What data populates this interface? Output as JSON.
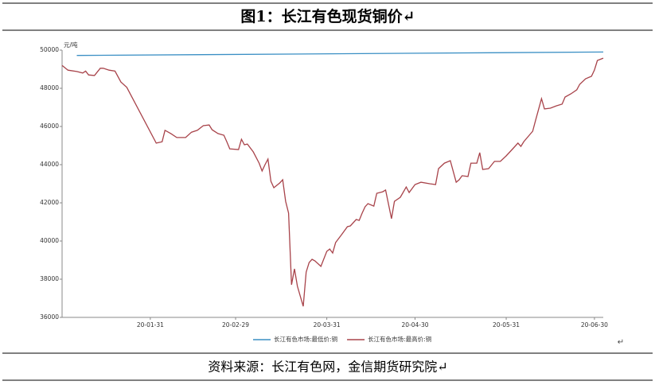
{
  "document": {
    "title": "图1：长江有色现货铜价↵",
    "source": "资料来源：长江有色网，金信期货研究院↵",
    "end_mark": "↵"
  },
  "chart_data": {
    "type": "line",
    "y_label": "元/吨",
    "xlim": [
      "20-01-01",
      "20-07-03"
    ],
    "xticks": [
      "20-01-31",
      "20-02-29",
      "20-03-31",
      "20-04-30",
      "20-05-31",
      "20-06-30"
    ],
    "ylim": [
      36000,
      50000
    ],
    "yticks": [
      36000,
      38000,
      40000,
      42000,
      44000,
      46000,
      48000,
      50000
    ],
    "grid": false,
    "legend": "bottom",
    "series": [
      {
        "name": "长江有色市场:最低价:铜",
        "color": "#3a8fc4",
        "x": [
          "20-01-06",
          "20-07-03"
        ],
        "values": [
          49720,
          49900
        ]
      },
      {
        "name": "长江有色市场:最高价:铜",
        "color": "#a8434a",
        "x": [
          "20-01-01",
          "20-01-03",
          "20-01-06",
          "20-01-08",
          "20-01-09",
          "20-01-10",
          "20-01-12",
          "20-01-14",
          "20-01-15",
          "20-01-17",
          "20-01-19",
          "20-01-21",
          "20-01-23",
          "20-02-02",
          "20-02-04",
          "20-02-05",
          "20-02-07",
          "20-02-09",
          "20-02-12",
          "20-02-14",
          "20-02-16",
          "20-02-18",
          "20-02-20",
          "20-02-21",
          "20-02-23",
          "20-02-25",
          "20-02-26",
          "20-02-27",
          "20-03-01",
          "20-03-02",
          "20-03-03",
          "20-03-04",
          "20-03-06",
          "20-03-08",
          "20-03-09",
          "20-03-10",
          "20-03-11",
          "20-03-12",
          "20-03-13",
          "20-03-15",
          "20-03-16",
          "20-03-17",
          "20-03-18",
          "20-03-19",
          "20-03-20",
          "20-03-21",
          "20-03-23",
          "20-03-24",
          "20-03-25",
          "20-03-26",
          "20-03-27",
          "20-03-29",
          "20-03-31",
          "20-04-01",
          "20-04-02",
          "20-04-03",
          "20-04-05",
          "20-04-07",
          "20-04-08",
          "20-04-10",
          "20-04-11",
          "20-04-12",
          "20-04-13",
          "20-04-14",
          "20-04-16",
          "20-04-17",
          "20-04-19",
          "20-04-20",
          "20-04-22",
          "20-04-23",
          "20-04-25",
          "20-04-27",
          "20-04-28",
          "20-04-30",
          "20-05-02",
          "20-05-05",
          "20-05-07",
          "20-05-08",
          "20-05-10",
          "20-05-12",
          "20-05-14",
          "20-05-15",
          "20-05-16",
          "20-05-18",
          "20-05-19",
          "20-05-21",
          "20-05-22",
          "20-05-23",
          "20-05-25",
          "20-05-27",
          "20-05-29",
          "20-05-31",
          "20-06-02",
          "20-06-04",
          "20-06-05",
          "20-06-06",
          "20-06-09",
          "20-06-10",
          "20-06-12",
          "20-06-13",
          "20-06-15",
          "20-06-17",
          "20-06-19",
          "20-06-20",
          "20-06-22",
          "20-06-24",
          "20-06-25",
          "20-06-27",
          "20-06-29",
          "20-06-30",
          "20-07-01",
          "20-07-03"
        ],
        "values": [
          49200,
          48950,
          48880,
          48800,
          48900,
          48700,
          48670,
          49050,
          49050,
          48950,
          48900,
          48330,
          48050,
          45130,
          45200,
          45800,
          45630,
          45420,
          45420,
          45700,
          45800,
          46040,
          46080,
          45830,
          45630,
          45540,
          45200,
          44830,
          44790,
          45330,
          45040,
          45080,
          44670,
          44080,
          43670,
          44000,
          44290,
          43130,
          42790,
          43040,
          43210,
          42080,
          41460,
          37710,
          38540,
          37630,
          36580,
          38370,
          38870,
          39040,
          38960,
          38670,
          39460,
          39580,
          39370,
          39920,
          40330,
          40750,
          40790,
          41130,
          41080,
          41460,
          41790,
          41960,
          41830,
          42500,
          42580,
          42670,
          41170,
          42080,
          42290,
          42830,
          42540,
          42960,
          43080,
          43000,
          42960,
          43790,
          44080,
          44210,
          43080,
          43210,
          43420,
          43380,
          44080,
          44080,
          44630,
          43750,
          43790,
          44170,
          44170,
          44460,
          44790,
          45130,
          44960,
          45210,
          45750,
          46330,
          47460,
          46920,
          46960,
          47080,
          47170,
          47540,
          47710,
          47920,
          48210,
          48500,
          48630,
          48960,
          49460,
          49580
        ]
      }
    ]
  }
}
